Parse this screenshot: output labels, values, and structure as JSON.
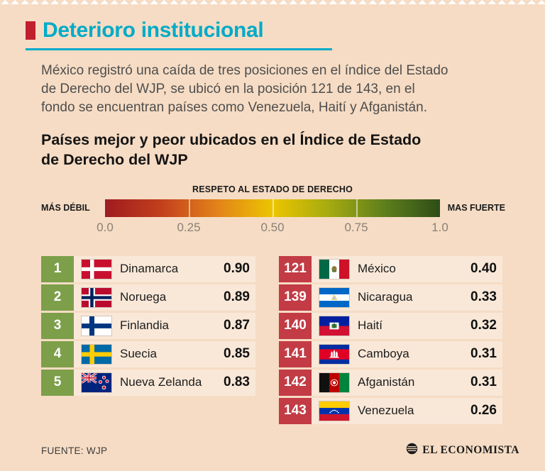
{
  "page": {
    "title": "Deterioro institucional",
    "background": "#f6dcc4",
    "title_color": "#00abc8",
    "accent_red": "#c01f2e"
  },
  "intro": {
    "text": "México registró una caída de tres posiciones en el índice del Estado\nde Derecho del WJP, se ubicó en la posición 121 de 143, en el\nfondo se encuentran países como Venezuela, Haití y Afganistán."
  },
  "subtitle": "Países mejor y peor ubicados en el Índice de Estado\nde Derecho del WJP",
  "scale": {
    "title": "RESPETO AL ESTADO DE DERECHO",
    "left_label": "MÁS DÉBIL",
    "right_label": "MAS FUERTE",
    "ticks": [
      "0.0",
      "0.25",
      "0.50",
      "0.75",
      "1.0"
    ],
    "gradient_colors": [
      "#9e1b20",
      "#c33f1c",
      "#e2821a",
      "#ecc500",
      "#a6ab10",
      "#5f7f1c",
      "#2e4d18"
    ]
  },
  "chart_data": {
    "type": "table",
    "title": "Países mejor y peor ubicados en el Índice de Estado de Derecho del WJP",
    "scale": {
      "label": "RESPETO AL ESTADO DE DERECHO",
      "min": 0.0,
      "max": 1.0,
      "ticks": [
        0.0,
        0.25,
        0.5,
        0.75,
        1.0
      ]
    },
    "rank_colors": {
      "best": "#7d9f4a",
      "worst": "#c23b45"
    },
    "best_ranked": [
      {
        "rank": 1,
        "country": "Dinamarca",
        "flag": "denmark",
        "score": 0.9
      },
      {
        "rank": 2,
        "country": "Noruega",
        "flag": "norway",
        "score": 0.89
      },
      {
        "rank": 3,
        "country": "Finlandia",
        "flag": "finland",
        "score": 0.87
      },
      {
        "rank": 4,
        "country": "Suecia",
        "flag": "sweden",
        "score": 0.85
      },
      {
        "rank": 5,
        "country": "Nueva Zelanda",
        "flag": "new-zealand",
        "score": 0.83
      }
    ],
    "worst_ranked": [
      {
        "rank": 121,
        "country": "México",
        "flag": "mexico",
        "score": 0.4
      },
      {
        "rank": 139,
        "country": "Nicaragua",
        "flag": "nicaragua",
        "score": 0.33
      },
      {
        "rank": 140,
        "country": "Haití",
        "flag": "haiti",
        "score": 0.32
      },
      {
        "rank": 141,
        "country": "Camboya",
        "flag": "cambodia",
        "score": 0.31
      },
      {
        "rank": 142,
        "country": "Afganistán",
        "flag": "afghanistan",
        "score": 0.31
      },
      {
        "rank": 143,
        "country": "Venezuela",
        "flag": "venezuela",
        "score": 0.26
      }
    ]
  },
  "footer": {
    "source": "FUENTE: WJP",
    "brand": "EL ECONOMISTA"
  }
}
